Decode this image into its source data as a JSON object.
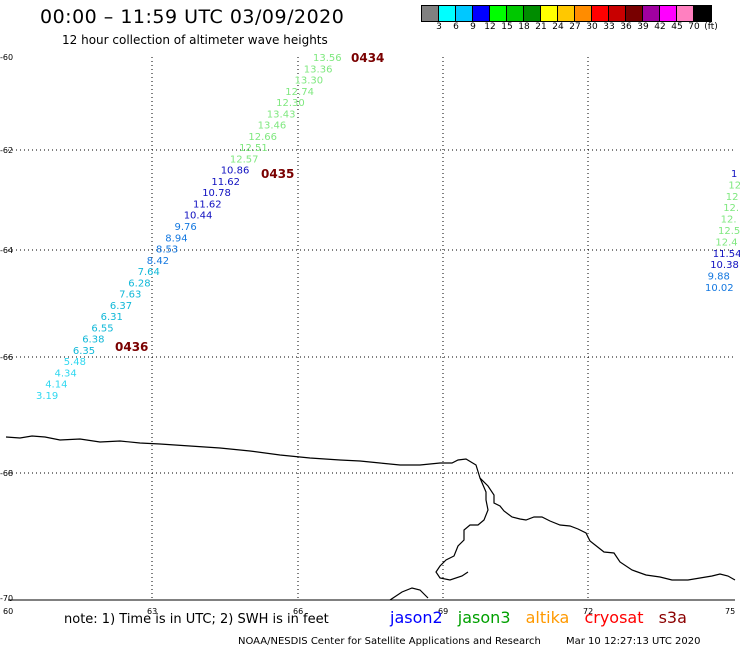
{
  "header": {
    "title": "00:00 – 11:59 UTC 03/09/2020",
    "subtitle": "12 hour collection of altimeter wave heights"
  },
  "legend": {
    "colors": [
      "#808080",
      "#00ffff",
      "#00c8ff",
      "#0000ff",
      "#00ff00",
      "#00c800",
      "#008c00",
      "#ffff00",
      "#ffc800",
      "#ff8c00",
      "#ff0000",
      "#c80000",
      "#780000",
      "#a000a0",
      "#ff00ff",
      "#ff80c0",
      "#000000"
    ],
    "labels": [
      "3",
      "6",
      "9",
      "12",
      "15",
      "18",
      "21",
      "24",
      "27",
      "30",
      "33",
      "36",
      "39",
      "42",
      "45",
      "70",
      "(ft)"
    ]
  },
  "map": {
    "lat_labels": [
      "-60",
      "-62",
      "-64",
      "-66",
      "-68",
      "-70"
    ],
    "lon_labels": [
      "60",
      "63",
      "66",
      "69",
      "72",
      "75"
    ],
    "pass_labels": [
      "0434",
      "0435",
      "0436"
    ],
    "track_a": [
      {
        "v": "13.56",
        "c": "#7fe87f"
      },
      {
        "v": "13.36",
        "c": "#7fe87f"
      },
      {
        "v": "13.30",
        "c": "#7fe87f"
      },
      {
        "v": "12.74",
        "c": "#7fe87f"
      },
      {
        "v": "12.30",
        "c": "#7fe87f"
      },
      {
        "v": "13.43",
        "c": "#7fe87f"
      },
      {
        "v": "13.46",
        "c": "#7fe87f"
      },
      {
        "v": "12.66",
        "c": "#7fe87f"
      },
      {
        "v": "12.51",
        "c": "#7fe87f"
      },
      {
        "v": "12.57",
        "c": "#7fe87f"
      },
      {
        "v": "10.86",
        "c": "#1010c0"
      },
      {
        "v": "11.62",
        "c": "#1010c0"
      },
      {
        "v": "10.78",
        "c": "#1010c0"
      },
      {
        "v": "11.62",
        "c": "#1010c0"
      },
      {
        "v": "10.44",
        "c": "#1010c0"
      },
      {
        "v": "9.76",
        "c": "#1478e0"
      },
      {
        "v": "8.94",
        "c": "#1478e0"
      },
      {
        "v": "8.53",
        "c": "#1478e0"
      },
      {
        "v": "8.42",
        "c": "#1478e0"
      },
      {
        "v": "7.64",
        "c": "#10b8d8"
      },
      {
        "v": "6.28",
        "c": "#10b8d8"
      },
      {
        "v": "7.63",
        "c": "#10b8d8"
      },
      {
        "v": "6.37",
        "c": "#10b8d8"
      },
      {
        "v": "6.31",
        "c": "#10b8d8"
      },
      {
        "v": "6.55",
        "c": "#10b8d8"
      },
      {
        "v": "6.38",
        "c": "#10b8d8"
      },
      {
        "v": "6.35",
        "c": "#10b8d8"
      },
      {
        "v": "5.48",
        "c": "#30d8f0"
      },
      {
        "v": "4.34",
        "c": "#30d8f0"
      },
      {
        "v": "4.14",
        "c": "#30d8f0"
      },
      {
        "v": "3.19",
        "c": "#30d8f0"
      }
    ],
    "track_b": [
      {
        "v": "1",
        "c": "#1010c0"
      },
      {
        "v": "12",
        "c": "#7fe87f"
      },
      {
        "v": "12",
        "c": "#7fe87f"
      },
      {
        "v": "12.",
        "c": "#7fe87f"
      },
      {
        "v": "12.",
        "c": "#7fe87f"
      },
      {
        "v": "12.5",
        "c": "#7fe87f"
      },
      {
        "v": "12.4",
        "c": "#7fe87f"
      },
      {
        "v": "11.54",
        "c": "#1010c0"
      },
      {
        "v": "10.38",
        "c": "#1010c0"
      },
      {
        "v": "9.88",
        "c": "#1478e0"
      },
      {
        "v": "10.02",
        "c": "#1478e0"
      }
    ]
  },
  "footer": {
    "note": "note:  1) Time is in UTC;  2) SWH is in feet",
    "satellites": [
      {
        "name": "jason2",
        "color": "#0000ff"
      },
      {
        "name": "jason3",
        "color": "#00a000"
      },
      {
        "name": "altika",
        "color": "#ff9900"
      },
      {
        "name": "cryosat",
        "color": "#ff0000"
      },
      {
        "name": "s3a",
        "color": "#8b0000"
      }
    ],
    "credit": "NOAA/NESDIS Center for Satellite Applications and Research",
    "timestamp": "Mar 10 12:27:13 UTC 2020"
  }
}
